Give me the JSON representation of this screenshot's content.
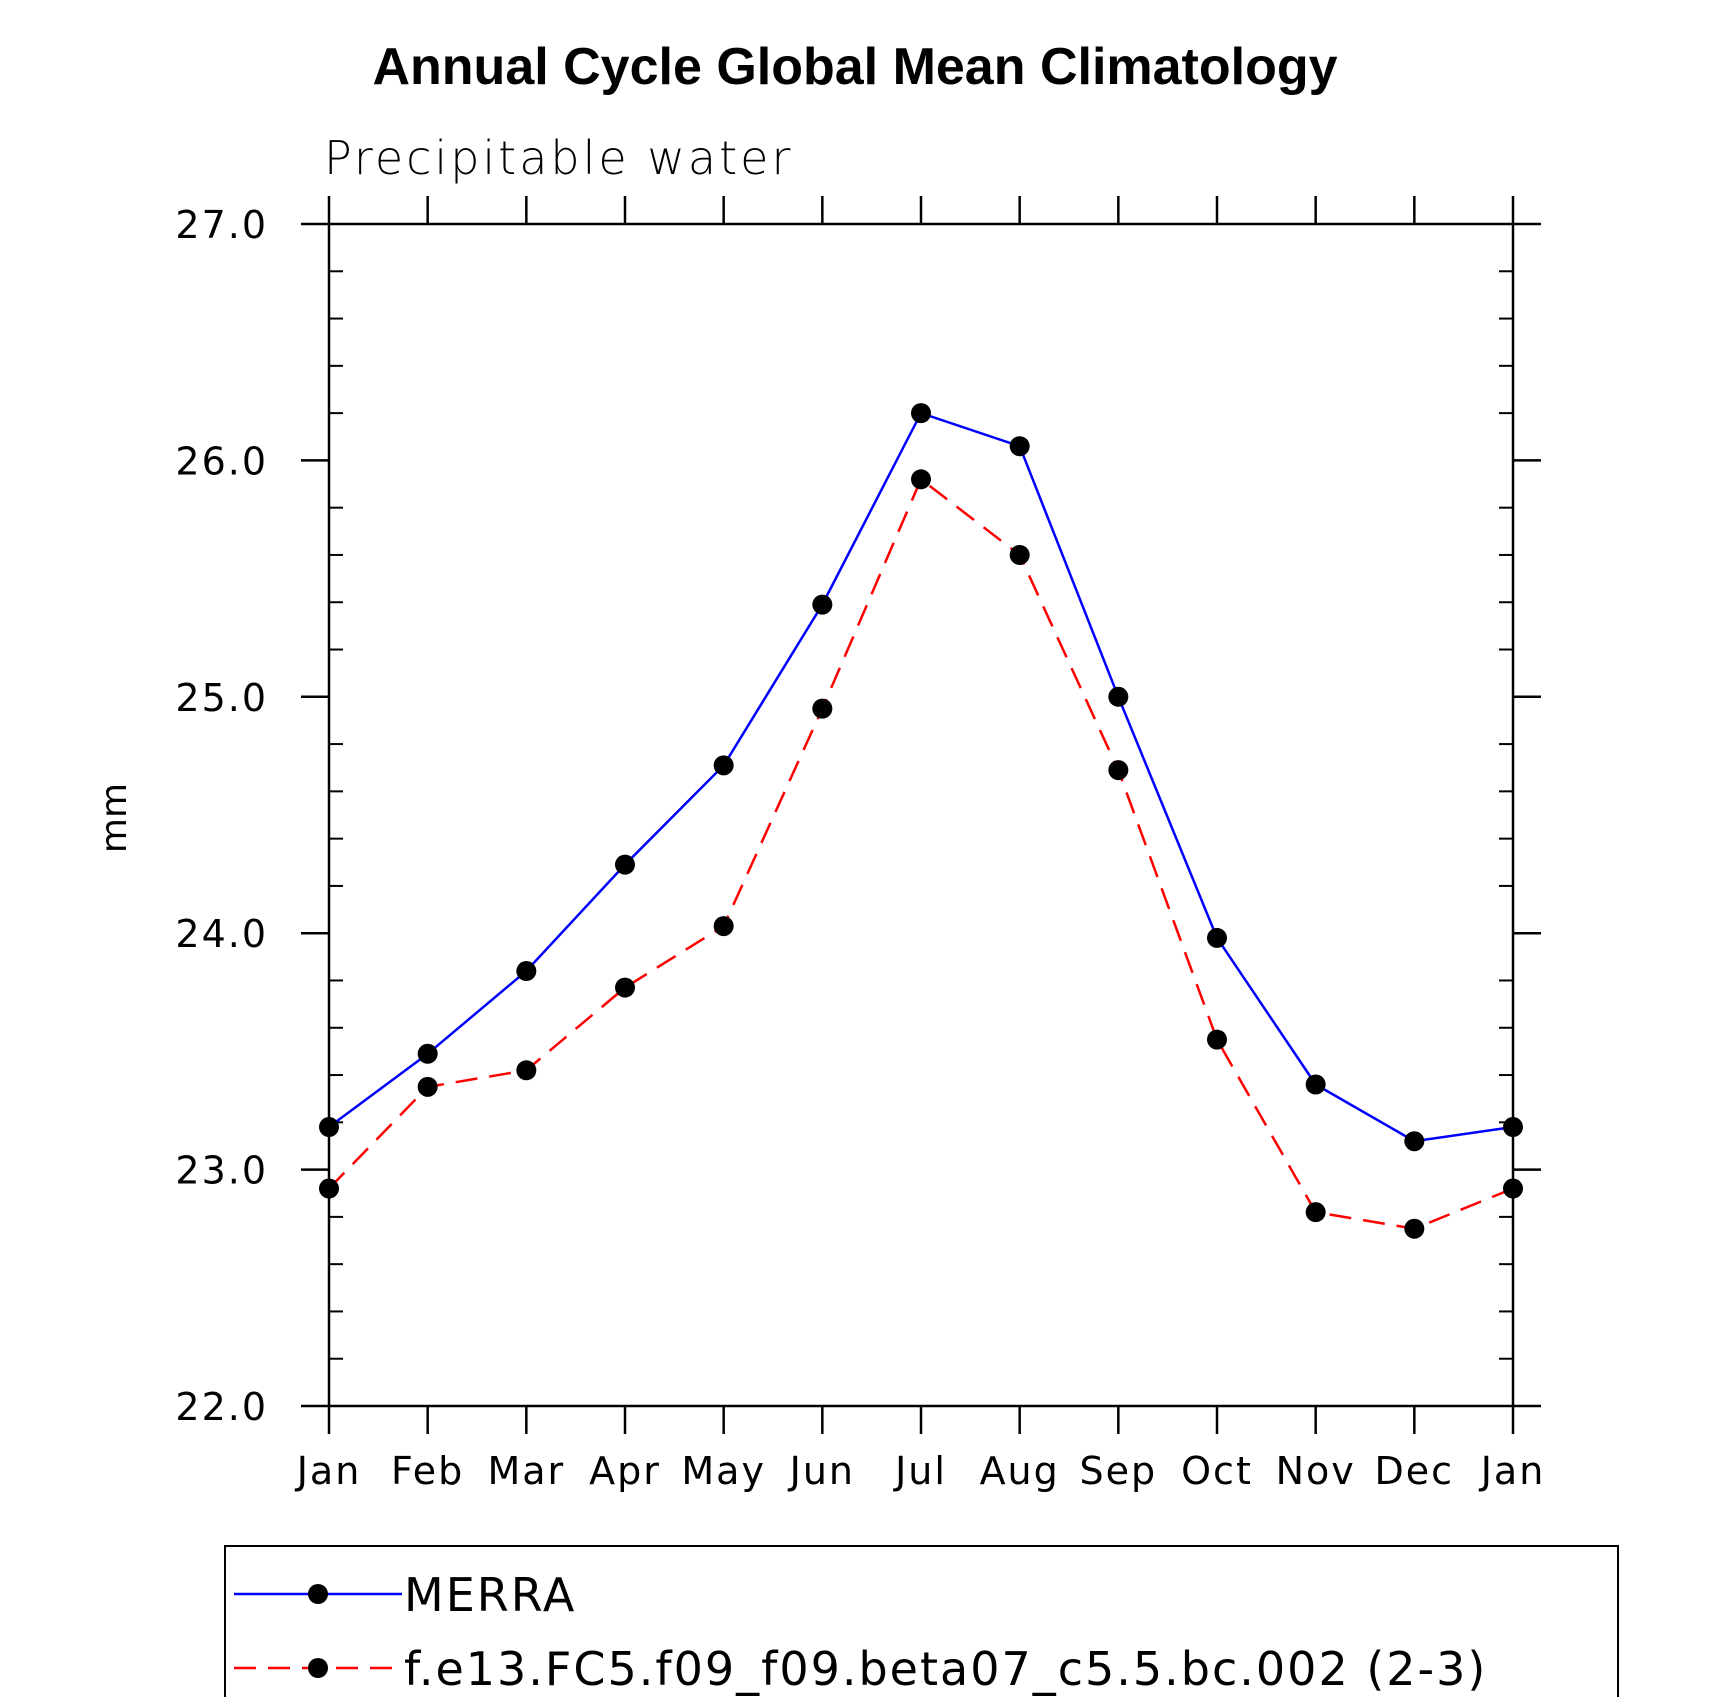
{
  "chart_data": {
    "type": "line",
    "title": "Annual Cycle Global Mean Climatology",
    "subtitle": "Precipitable water",
    "xlabel": "",
    "ylabel": "mm",
    "categories": [
      "Jan",
      "Feb",
      "Mar",
      "Apr",
      "May",
      "Jun",
      "Jul",
      "Aug",
      "Sep",
      "Oct",
      "Nov",
      "Dec",
      "Jan"
    ],
    "ylim": [
      22.0,
      27.0
    ],
    "yticks": [
      "22.0",
      "23.0",
      "24.0",
      "25.0",
      "26.0",
      "27.0"
    ],
    "ytick_values": [
      22.0,
      23.0,
      24.0,
      25.0,
      26.0,
      27.0
    ],
    "grid": false,
    "legend_position": "bottom",
    "series": [
      {
        "name": "MERRA",
        "color": "#0000ff",
        "style": "solid",
        "marker": "circle",
        "values": [
          23.18,
          23.49,
          23.84,
          24.29,
          24.71,
          25.39,
          26.2,
          26.06,
          25.0,
          23.98,
          23.36,
          23.12,
          23.18
        ]
      },
      {
        "name": "f.e13.FC5.f09_f09.beta07_c5.5.bc.002 (2-3)",
        "color": "#ff0000",
        "style": "dashed",
        "marker": "circle",
        "values": [
          22.92,
          23.35,
          23.42,
          23.77,
          24.03,
          24.95,
          25.92,
          25.6,
          24.69,
          23.55,
          22.82,
          22.75,
          22.92
        ]
      }
    ]
  }
}
